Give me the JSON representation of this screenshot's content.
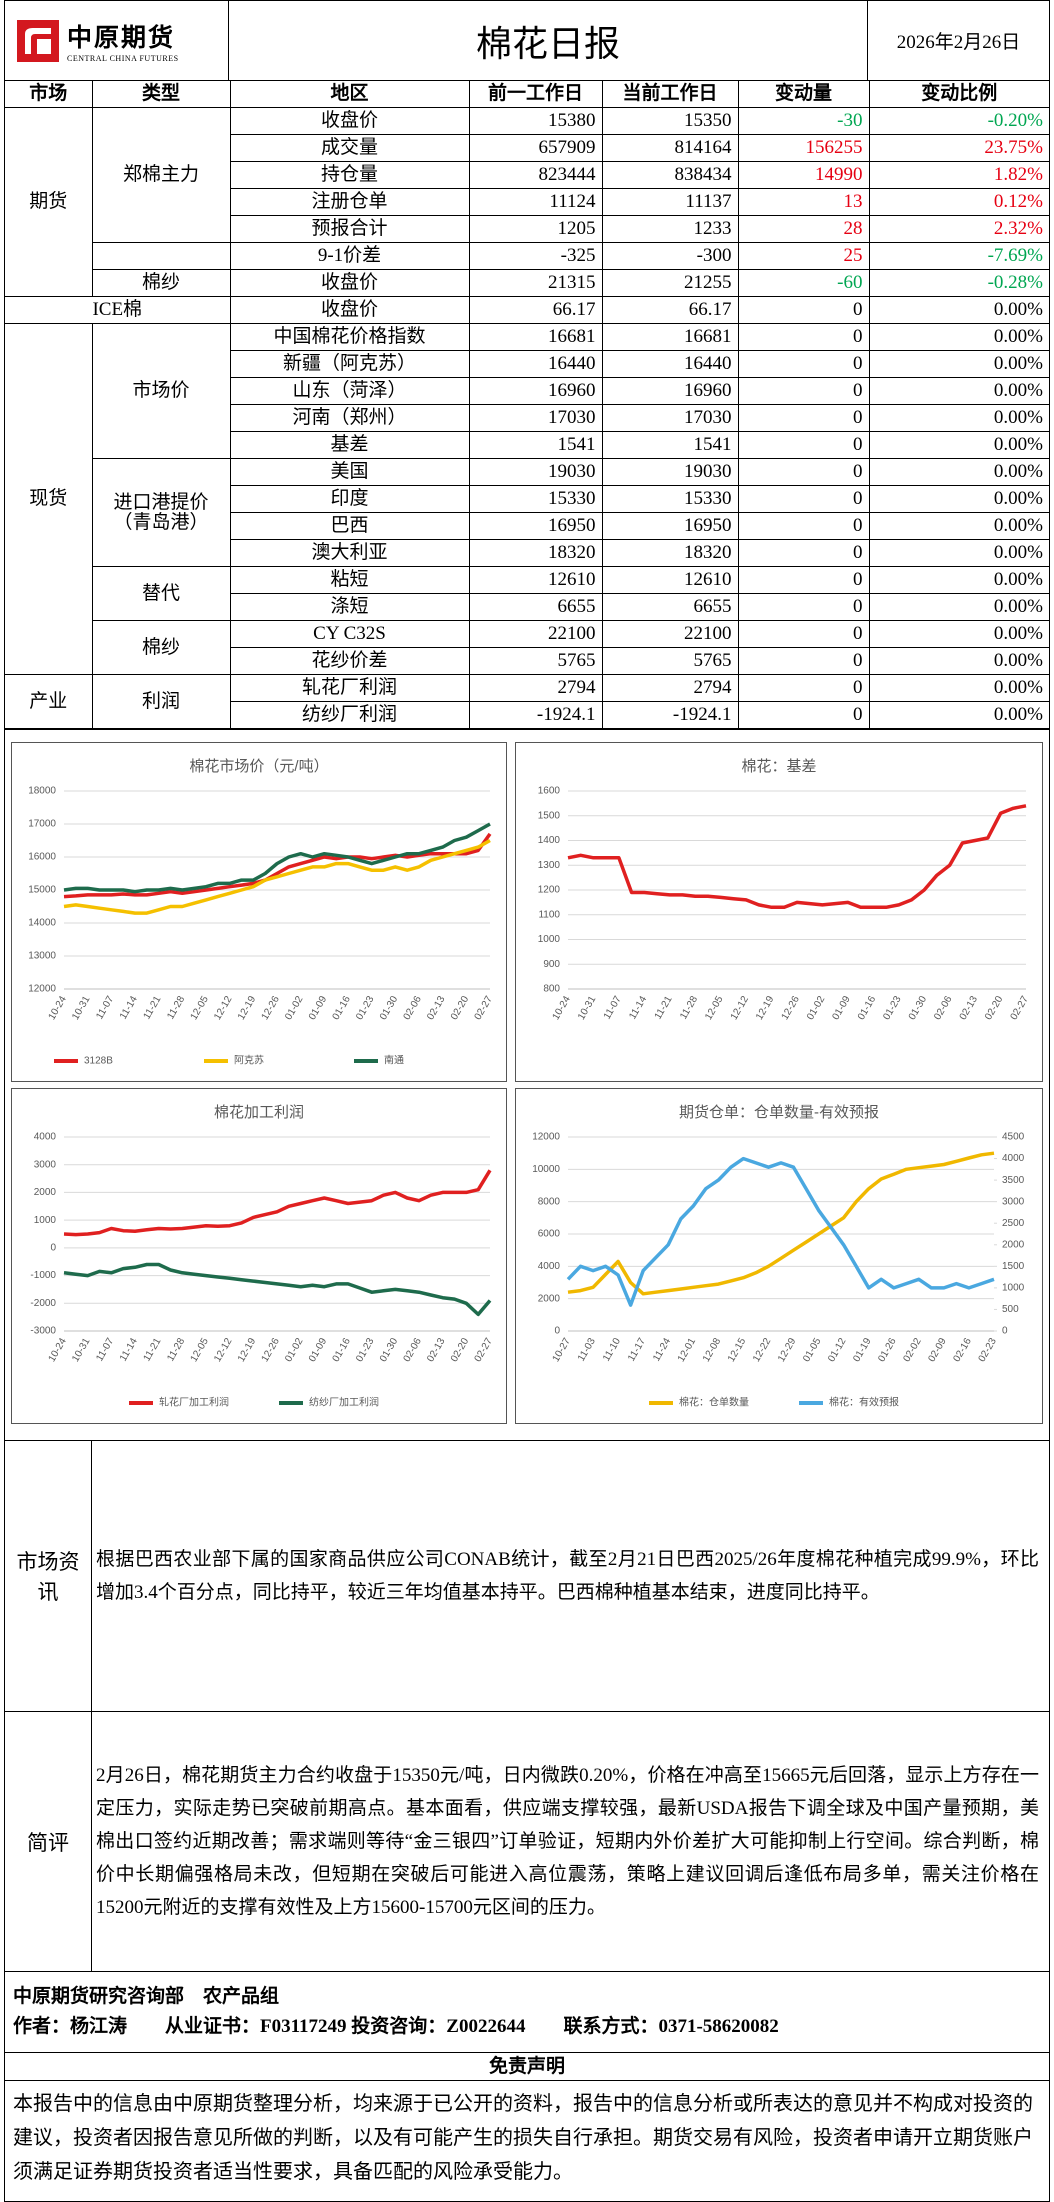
{
  "header": {
    "logo_cn": "中原期货",
    "logo_en": "CENTRAL CHINA FUTURES",
    "title": "棉花日报",
    "date": "2026年2月26日"
  },
  "table": {
    "columns": [
      "市场",
      "类型",
      "地区",
      "前一工作日",
      "当前工作日",
      "变动量",
      "变动比例"
    ],
    "markets": [
      {
        "name": "期货",
        "groups": [
          {
            "name": "郑棉主力",
            "rows": [
              [
                "收盘价",
                "15380",
                "15350",
                "-30",
                "-0.20%"
              ],
              [
                "成交量",
                "657909",
                "814164",
                "156255",
                "23.75%"
              ],
              [
                "持仓量",
                "823444",
                "838434",
                "14990",
                "1.82%"
              ],
              [
                "注册仓单",
                "11124",
                "11137",
                "13",
                "0.12%"
              ],
              [
                "预报合计",
                "1205",
                "1233",
                "28",
                "2.32%"
              ]
            ]
          },
          {
            "rows": [
              [
                "9-1价差",
                "-325",
                "-300",
                "25",
                "-7.69%"
              ]
            ]
          },
          {
            "name": "棉纱",
            "rows": [
              [
                "收盘价",
                "21315",
                "21255",
                "-60",
                "-0.28%"
              ]
            ]
          }
        ]
      },
      {
        "name": "ICE棉",
        "rows": [
          [
            "收盘价",
            "66.17",
            "66.17",
            "0",
            "0.00%"
          ]
        ]
      },
      {
        "name": "现货",
        "groups": [
          {
            "name": "市场价",
            "rows": [
              [
                "中国棉花价格指数",
                "16681",
                "16681",
                "0",
                "0.00%"
              ],
              [
                "新疆（阿克苏）",
                "16440",
                "16440",
                "0",
                "0.00%"
              ],
              [
                "山东（菏泽）",
                "16960",
                "16960",
                "0",
                "0.00%"
              ],
              [
                "河南（郑州）",
                "17030",
                "17030",
                "0",
                "0.00%"
              ],
              [
                "基差",
                "1541",
                "1541",
                "0",
                "0.00%"
              ]
            ]
          },
          {
            "name": "进口港提价（青岛港）",
            "rows": [
              [
                "美国",
                "19030",
                "19030",
                "0",
                "0.00%"
              ],
              [
                "印度",
                "15330",
                "15330",
                "0",
                "0.00%"
              ],
              [
                "巴西",
                "16950",
                "16950",
                "0",
                "0.00%"
              ],
              [
                "澳大利亚",
                "18320",
                "18320",
                "0",
                "0.00%"
              ]
            ]
          },
          {
            "name": "替代",
            "rows": [
              [
                "粘短",
                "12610",
                "12610",
                "0",
                "0.00%"
              ],
              [
                "涤短",
                "6655",
                "6655",
                "0",
                "0.00%"
              ]
            ]
          },
          {
            "name": "棉纱",
            "rows": [
              [
                "CY C32S",
                "22100",
                "22100",
                "0",
                "0.00%"
              ],
              [
                "花纱价差",
                "5765",
                "5765",
                "0",
                "0.00%"
              ]
            ]
          }
        ]
      },
      {
        "name": "产业",
        "groups": [
          {
            "name": "利润",
            "rows": [
              [
                "轧花厂利润",
                "2794",
                "2794",
                "0",
                "0.00%"
              ],
              [
                "纺纱厂利润",
                "-1924.1",
                "-1924.1",
                "0",
                "0.00%"
              ]
            ]
          }
        ]
      }
    ]
  },
  "chart_data": [
    {
      "type": "line",
      "title": "棉花市场价（元/吨）",
      "grid": true,
      "categories": [
        "10-24",
        null,
        "10-31",
        null,
        "11-07",
        null,
        "11-14",
        null,
        "11-21",
        null,
        "11-28",
        null,
        "12-05",
        null,
        "12-12",
        null,
        "12-19",
        null,
        "12-26",
        null,
        "01-02",
        null,
        "01-09",
        null,
        "01-16",
        null,
        "01-23",
        null,
        "01-30",
        null,
        "02-06",
        null,
        "02-13",
        null,
        "02-20",
        null,
        "02-27"
      ],
      "ylim": [
        12000,
        18000
      ],
      "yticks": [
        12000,
        13000,
        14000,
        15000,
        16000,
        17000,
        18000
      ],
      "series": [
        {
          "name": "3128B",
          "color": "#e02020",
          "values": [
            14800,
            14820,
            14850,
            14850,
            14850,
            14880,
            14850,
            14850,
            14900,
            14950,
            14900,
            14950,
            15000,
            15050,
            15100,
            15150,
            15200,
            15300,
            15500,
            15700,
            15800,
            15900,
            16000,
            15950,
            16000,
            16000,
            15950,
            16000,
            16050,
            16000,
            16050,
            16100,
            16100,
            16100,
            16100,
            16200,
            16700
          ]
        },
        {
          "name": "阿克苏",
          "color": "#f5c000",
          "values": [
            14500,
            14550,
            14500,
            14450,
            14400,
            14350,
            14300,
            14300,
            14400,
            14500,
            14500,
            14600,
            14700,
            14800,
            14900,
            15000,
            15100,
            15300,
            15400,
            15500,
            15600,
            15700,
            15700,
            15800,
            15800,
            15700,
            15600,
            15600,
            15700,
            15600,
            15700,
            15900,
            16000,
            16100,
            16200,
            16300,
            16500
          ]
        },
        {
          "name": "南通",
          "color": "#1e6b4c",
          "values": [
            15000,
            15050,
            15050,
            15000,
            15000,
            15000,
            14950,
            15000,
            15000,
            15050,
            15000,
            15050,
            15100,
            15200,
            15200,
            15300,
            15300,
            15500,
            15800,
            16000,
            16100,
            16000,
            16100,
            16050,
            16000,
            15900,
            15800,
            15900,
            16000,
            16100,
            16100,
            16200,
            16300,
            16500,
            16600,
            16800,
            17000
          ]
        }
      ]
    },
    {
      "type": "line",
      "title": "棉花：基差",
      "grid": true,
      "categories": [
        "10-24",
        null,
        "10-31",
        null,
        "11-07",
        null,
        "11-14",
        null,
        "11-21",
        null,
        "11-28",
        null,
        "12-05",
        null,
        "12-12",
        null,
        "12-19",
        null,
        "12-26",
        null,
        "01-02",
        null,
        "01-09",
        null,
        "01-16",
        null,
        "01-23",
        null,
        "01-30",
        null,
        "02-06",
        null,
        "02-13",
        null,
        "02-20",
        null,
        "02-27"
      ],
      "ylim": [
        800,
        1600
      ],
      "yticks": [
        800,
        900,
        1000,
        1100,
        1200,
        1300,
        1400,
        1500,
        1600
      ],
      "series": [
        {
          "color": "#e02020",
          "values": [
            1330,
            1340,
            1330,
            1330,
            1330,
            1190,
            1190,
            1185,
            1180,
            1180,
            1175,
            1175,
            1170,
            1165,
            1160,
            1140,
            1130,
            1130,
            1150,
            1145,
            1140,
            1145,
            1150,
            1130,
            1130,
            1130,
            1140,
            1160,
            1200,
            1260,
            1300,
            1390,
            1400,
            1410,
            1510,
            1530,
            1540
          ]
        }
      ]
    },
    {
      "type": "line",
      "title": "棉花加工利润",
      "grid": true,
      "categories": [
        "10-24",
        null,
        "10-31",
        null,
        "11-07",
        null,
        "11-14",
        null,
        "11-21",
        null,
        "11-28",
        null,
        "12-05",
        null,
        "12-12",
        null,
        "12-19",
        null,
        "12-26",
        null,
        "01-02",
        null,
        "01-09",
        null,
        "01-16",
        null,
        "01-23",
        null,
        "01-30",
        null,
        "02-06",
        null,
        "02-13",
        null,
        "02-20",
        null,
        "02-27"
      ],
      "ylim": [
        -3000,
        4000
      ],
      "yticks": [
        -3000,
        -2000,
        -1000,
        0,
        1000,
        2000,
        3000,
        4000
      ],
      "series": [
        {
          "name": "轧花厂加工利润",
          "color": "#e02020",
          "values": [
            500,
            480,
            500,
            550,
            700,
            620,
            600,
            650,
            700,
            680,
            700,
            750,
            800,
            780,
            800,
            900,
            1100,
            1200,
            1300,
            1500,
            1600,
            1700,
            1800,
            1700,
            1600,
            1650,
            1700,
            1900,
            2000,
            1800,
            1700,
            1900,
            2000,
            2000,
            2000,
            2100,
            2800
          ]
        },
        {
          "name": "纺纱厂加工利润",
          "color": "#1e6b4c",
          "values": [
            -900,
            -950,
            -1000,
            -850,
            -900,
            -750,
            -700,
            -600,
            -600,
            -800,
            -900,
            -950,
            -1000,
            -1050,
            -1100,
            -1150,
            -1200,
            -1250,
            -1300,
            -1350,
            -1400,
            -1350,
            -1400,
            -1300,
            -1300,
            -1450,
            -1600,
            -1550,
            -1500,
            -1550,
            -1600,
            -1700,
            -1800,
            -1850,
            -2000,
            -2400,
            -1900
          ]
        }
      ]
    },
    {
      "type": "line",
      "title": "期货仓单：仓单数量-有效预报",
      "grid": true,
      "categories": [
        "10-27",
        null,
        "11-03",
        null,
        "11-10",
        null,
        "11-17",
        null,
        "11-24",
        null,
        "12-01",
        null,
        "12-08",
        null,
        "12-15",
        null,
        "12-22",
        null,
        "12-29",
        null,
        "01-05",
        null,
        "01-12",
        null,
        "01-19",
        null,
        "01-26",
        null,
        "02-02",
        null,
        "02-09",
        null,
        "02-16",
        null,
        "02-23"
      ],
      "ylim": [
        0,
        12000
      ],
      "yticks": [
        0,
        2000,
        4000,
        6000,
        8000,
        10000,
        12000
      ],
      "y2lim": [
        0,
        4500
      ],
      "y2ticks": [
        0,
        500,
        1000,
        1500,
        2000,
        2500,
        3000,
        3500,
        4000,
        4500
      ],
      "series": [
        {
          "name": "棉花：仓单数量",
          "color": "#f0b800",
          "values": [
            2400,
            2500,
            2700,
            3500,
            4300,
            3000,
            2300,
            2400,
            2500,
            2600,
            2700,
            2800,
            2900,
            3100,
            3300,
            3600,
            4000,
            4500,
            5000,
            5500,
            6000,
            6500,
            7000,
            8000,
            8800,
            9400,
            9700,
            10000,
            10100,
            10200,
            10300,
            10500,
            10700,
            10900,
            11000
          ]
        },
        {
          "name": "棉花：有效预报",
          "color": "#4aa8e0",
          "axis": "y2",
          "values": [
            1200,
            1500,
            1400,
            1500,
            1300,
            600,
            1400,
            1700,
            2000,
            2600,
            2900,
            3300,
            3500,
            3800,
            4000,
            3900,
            3800,
            3900,
            3800,
            3300,
            2800,
            2400,
            2000,
            1500,
            1000,
            1200,
            1000,
            1100,
            1200,
            1000,
            1000,
            1100,
            1000,
            1100,
            1200
          ]
        }
      ]
    }
  ],
  "news": {
    "label": "市场资讯",
    "text": "根据巴西农业部下属的国家商品供应公司CONAB统计，截至2月21日巴西2025/26年度棉花种植完成99.9%，环比增加3.4个百分点，同比持平，较近三年均值基本持平。巴西棉种植基本结束，进度同比持平。"
  },
  "comment": {
    "label": "简评",
    "text": "2月26日，棉花期货主力合约收盘于15350元/吨，日内微跌0.20%，价格在冲高至15665元后回落，显示上方存在一定压力，实际走势已突破前期高点。基本面看，供应端支撑较强，最新USDA报告下调全球及中国产量预期，美棉出口签约近期改善；需求端则等待“金三银四”订单验证，短期内外价差扩大可能抑制上行空间。综合判断，棉价中长期偏强格局未改，但短期在突破后可能进入高位震荡，策略上建议回调后逢低布局多单，需关注价格在15200元附近的支撑有效性及上方15600-15700元区间的压力。"
  },
  "footer": {
    "line1": "中原期货研究咨询部　农产品组",
    "line2": "作者：杨江涛　　从业证书：F03117249 投资咨询：Z0022644　　联系方式：0371-58620082"
  },
  "disclaimer": {
    "title": "免责声明",
    "text": "本报告中的信息由中原期货整理分析，均来源于已公开的资料，报告中的信息分析或所表达的意见并不构成对投资的建议，投资者因报告意见所做的判断，以及有可能产生的损失自行承担。期货交易有风险，投资者申请开立期货账户须满足证券期货投资者适当性要求，具备匹配的风险承受能力。"
  }
}
